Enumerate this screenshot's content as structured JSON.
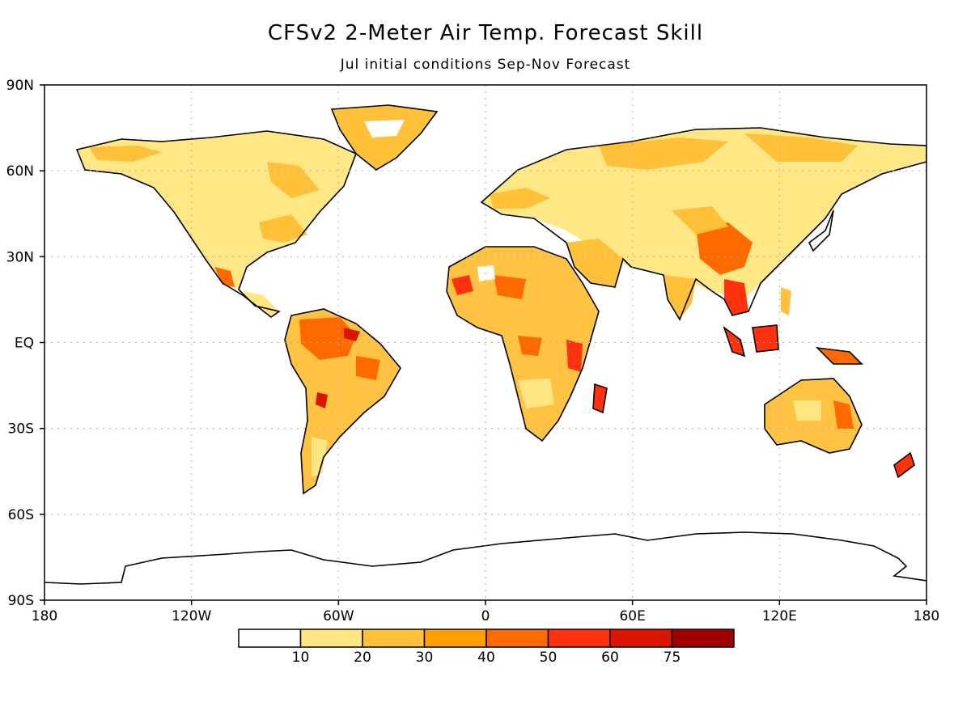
{
  "title": "CFSv2 2-Meter Air Temp. Forecast Skill",
  "subtitle": "Jul initial conditions   Sep-Nov Forecast",
  "lat_labels": [
    "90N",
    "60N",
    "30N",
    "EQ",
    "30S",
    "60S",
    "90S"
  ],
  "lon_labels": [
    "180",
    "120W",
    "60W",
    "0",
    "60E",
    "120E",
    "180"
  ],
  "legend": {
    "boundaries": [
      "10",
      "20",
      "30",
      "40",
      "50",
      "60",
      "75"
    ],
    "colors": [
      "#ffffff",
      "#ffe680",
      "#ffc03a",
      "#ffa000",
      "#ff6a00",
      "#ff3210",
      "#dc1400",
      "#a00000"
    ]
  },
  "colors": {
    "land_outline": "#000000",
    "grid": "#b0b0b0"
  }
}
